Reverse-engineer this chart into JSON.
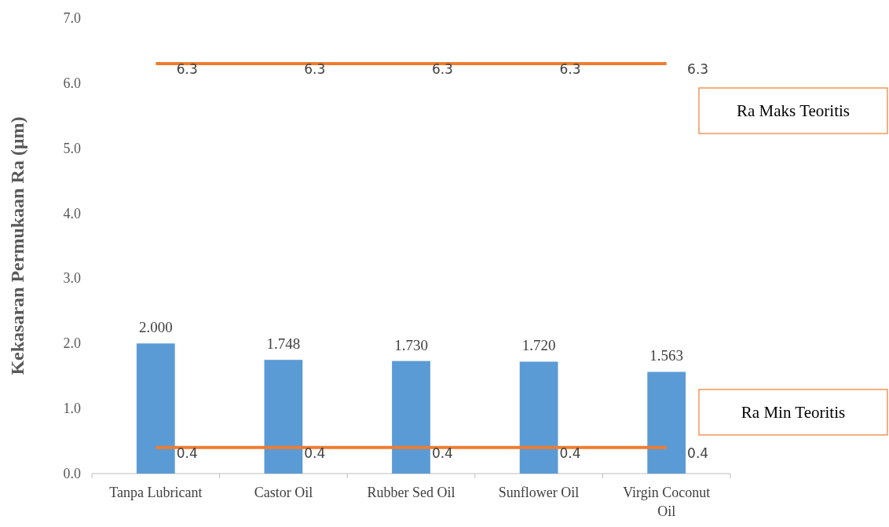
{
  "chart_data": {
    "type": "bar",
    "ylabel": "Kekasaran Permukaan Ra (µm)",
    "categories": [
      "Tanpa Lubricant",
      "Castor Oil",
      "Rubber Sed Oil",
      "Sunflower Oil",
      "Virgin Coconut Oil"
    ],
    "series": [
      {
        "type": "bar",
        "color": "#5b9bd5",
        "values": [
          2.0,
          1.748,
          1.73,
          1.72,
          1.563
        ],
        "value_labels": [
          "2.000",
          "1.748",
          "1.730",
          "1.720",
          "1.563"
        ]
      },
      {
        "type": "line",
        "name": "Ra Maks Teoritis",
        "color": "#ed7d31",
        "values": [
          6.3,
          6.3,
          6.3,
          6.3,
          6.3
        ],
        "value_labels": [
          "6.3",
          "6.3",
          "6.3",
          "6.3",
          "6.3"
        ]
      },
      {
        "type": "line",
        "name": "Ra Min Teoritis",
        "color": "#ed7d31",
        "values": [
          0.4,
          0.4,
          0.4,
          0.4,
          0.4
        ],
        "value_labels": [
          "0.4",
          "0.4",
          "0.4",
          "0.4",
          "0.4"
        ]
      }
    ],
    "ylim": [
      0,
      7
    ],
    "yticks": [
      {
        "value": 0,
        "label": "0.0"
      },
      {
        "value": 1,
        "label": "1.0"
      },
      {
        "value": 2,
        "label": "2.0"
      },
      {
        "value": 3,
        "label": "3.0"
      },
      {
        "value": 4,
        "label": "4.0"
      },
      {
        "value": 5,
        "label": "5.0"
      },
      {
        "value": 6,
        "label": "6.0"
      },
      {
        "value": 7,
        "label": "7.0"
      }
    ],
    "grid": false,
    "legend": "right"
  }
}
